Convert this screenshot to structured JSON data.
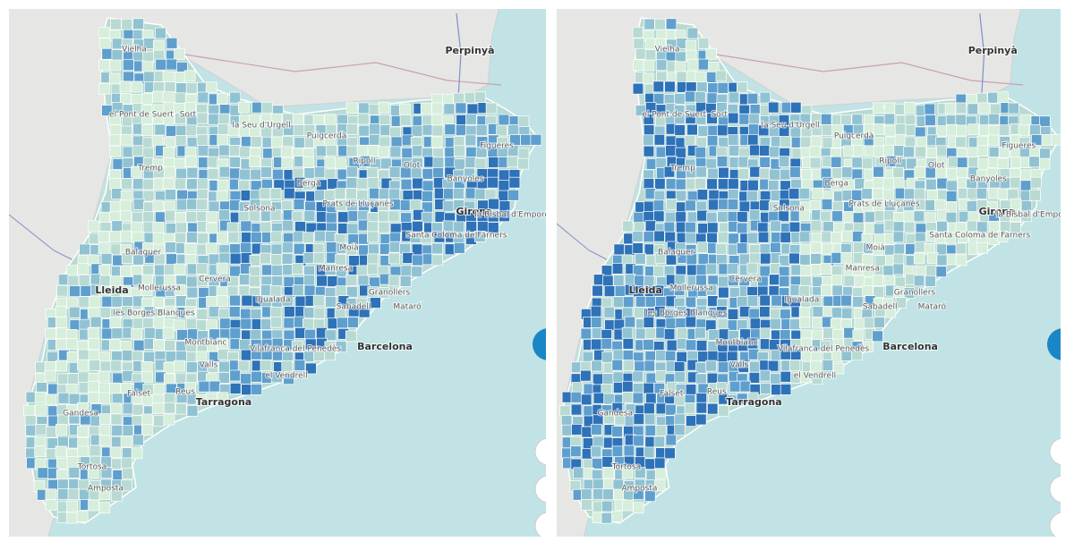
{
  "maps": [
    {
      "labels": [
        "Vielha",
        "Perpinyà",
        "el Pont de Suert",
        "Sort",
        "la Seu d'Urgell",
        "Puigcerdà",
        "Tremp",
        "Ripoll",
        "Olot",
        "Figueres",
        "Berga",
        "Banyoles",
        "Solsona",
        "Prats de Lluçanès",
        "Girona",
        "la Bisbal d'Empordà",
        "Santa Coloma de Farners",
        "Moià",
        "Balaguer",
        "Cervera",
        "Manresa",
        "Lleida",
        "Mollerussa",
        "Igualada",
        "Granollers",
        "Sabadell",
        "Mataró",
        "les Borges Blanques",
        "Montblanc",
        "Barcelona",
        "Vilafranca del Penedès",
        "Valls",
        "el Vendrell",
        "Falset",
        "Reus",
        "Tarragona",
        "Gandesa",
        "Tortosa",
        "Amposta"
      ]
    },
    {
      "labels": [
        "Vielha",
        "Perpinyà",
        "el Pont de Suert",
        "Sort",
        "la Seu d'Urgell",
        "Puigcerdà",
        "Tremp",
        "Ripoll",
        "Olot",
        "Figueres",
        "Berga",
        "Banyoles",
        "Solsona",
        "Prats de Lluçanès",
        "Girona",
        "la Bisbal d'Empordà",
        "Santa Coloma de Farners",
        "Moià",
        "Balaguer",
        "Cervera",
        "Manresa",
        "Lleida",
        "Mollerussa",
        "Igualada",
        "Granollers",
        "Sabadell",
        "Mataró",
        "les Borges Blanques",
        "Montblanc",
        "Barcelona",
        "Vilafranca del Penedès",
        "Valls",
        "el Vendrell",
        "Falset",
        "Reus",
        "Tarragona",
        "Gandesa",
        "Tortosa",
        "Amposta"
      ]
    }
  ]
}
